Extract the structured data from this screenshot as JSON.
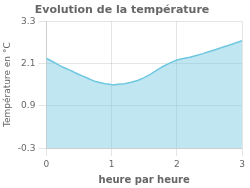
{
  "chart_data": {
    "type": "area",
    "title": "Evolution de la température",
    "xlabel": "heure par heure",
    "ylabel": "Température en °C",
    "x": [
      0,
      0.05,
      0.1,
      0.15,
      0.2,
      0.25,
      0.3,
      0.35,
      0.4,
      0.45,
      0.5,
      0.55,
      0.6,
      0.65,
      0.7,
      0.75,
      0.8,
      0.85,
      0.9,
      0.95,
      1.0,
      1.05,
      1.1,
      1.15,
      1.2,
      1.3,
      1.4,
      1.5,
      1.6,
      1.7,
      1.8,
      1.9,
      2.0,
      2.1,
      2.2,
      2.3,
      2.4,
      2.5,
      2.6,
      2.7,
      2.8,
      2.9,
      3.0
    ],
    "values": [
      2.25,
      2.2,
      2.15,
      2.1,
      2.05,
      2.0,
      1.96,
      1.92,
      1.88,
      1.83,
      1.79,
      1.75,
      1.71,
      1.67,
      1.63,
      1.59,
      1.57,
      1.55,
      1.53,
      1.52,
      1.5,
      1.5,
      1.51,
      1.52,
      1.53,
      1.57,
      1.62,
      1.7,
      1.8,
      1.92,
      2.03,
      2.12,
      2.2,
      2.24,
      2.28,
      2.33,
      2.38,
      2.44,
      2.5,
      2.56,
      2.62,
      2.68,
      2.75
    ],
    "color": "#70c8e0",
    "xlim": [
      0,
      3
    ],
    "xticks": [
      0,
      1,
      2,
      3
    ],
    "ylim": [
      -0.3,
      3.3
    ],
    "yticks": [
      -0.3,
      0.9,
      2.1,
      3.3
    ],
    "grid": true
  }
}
